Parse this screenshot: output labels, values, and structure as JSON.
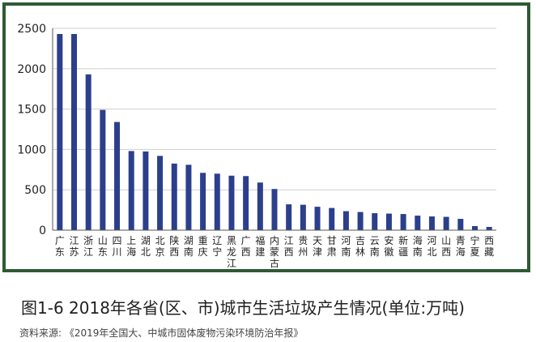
{
  "chart_data": {
    "type": "bar",
    "categories": [
      "广东",
      "江苏",
      "浙江",
      "山东",
      "四川",
      "上海",
      "湖北",
      "北京",
      "陕西",
      "湖南",
      "重庆",
      "辽宁",
      "黑龙江",
      "广西",
      "福建",
      "内蒙古",
      "江西",
      "贵州",
      "天津",
      "甘肃",
      "河南",
      "吉林",
      "云南",
      "安徽",
      "新疆",
      "海南",
      "河北",
      "山西",
      "青海",
      "宁夏",
      "西藏"
    ],
    "values": [
      2430,
      2430,
      1930,
      1490,
      1340,
      980,
      975,
      920,
      825,
      810,
      710,
      700,
      675,
      670,
      590,
      510,
      320,
      315,
      290,
      275,
      235,
      225,
      210,
      205,
      200,
      180,
      170,
      165,
      140,
      50,
      40
    ],
    "ylim": [
      0,
      2500
    ],
    "yticks": [
      0,
      500,
      1000,
      1500,
      2000,
      2500
    ],
    "grid": true,
    "colors": {
      "bar": "#2b3f8c",
      "grid": "#cfcfcf",
      "frame": "#2e5a33"
    }
  },
  "caption": "图1-6  2018年各省(区、市)城市生活垃圾产生情况(单位:万吨)",
  "source": "资料来源:  《2019年全国大、中城市固体废物污染环境防治年报》"
}
